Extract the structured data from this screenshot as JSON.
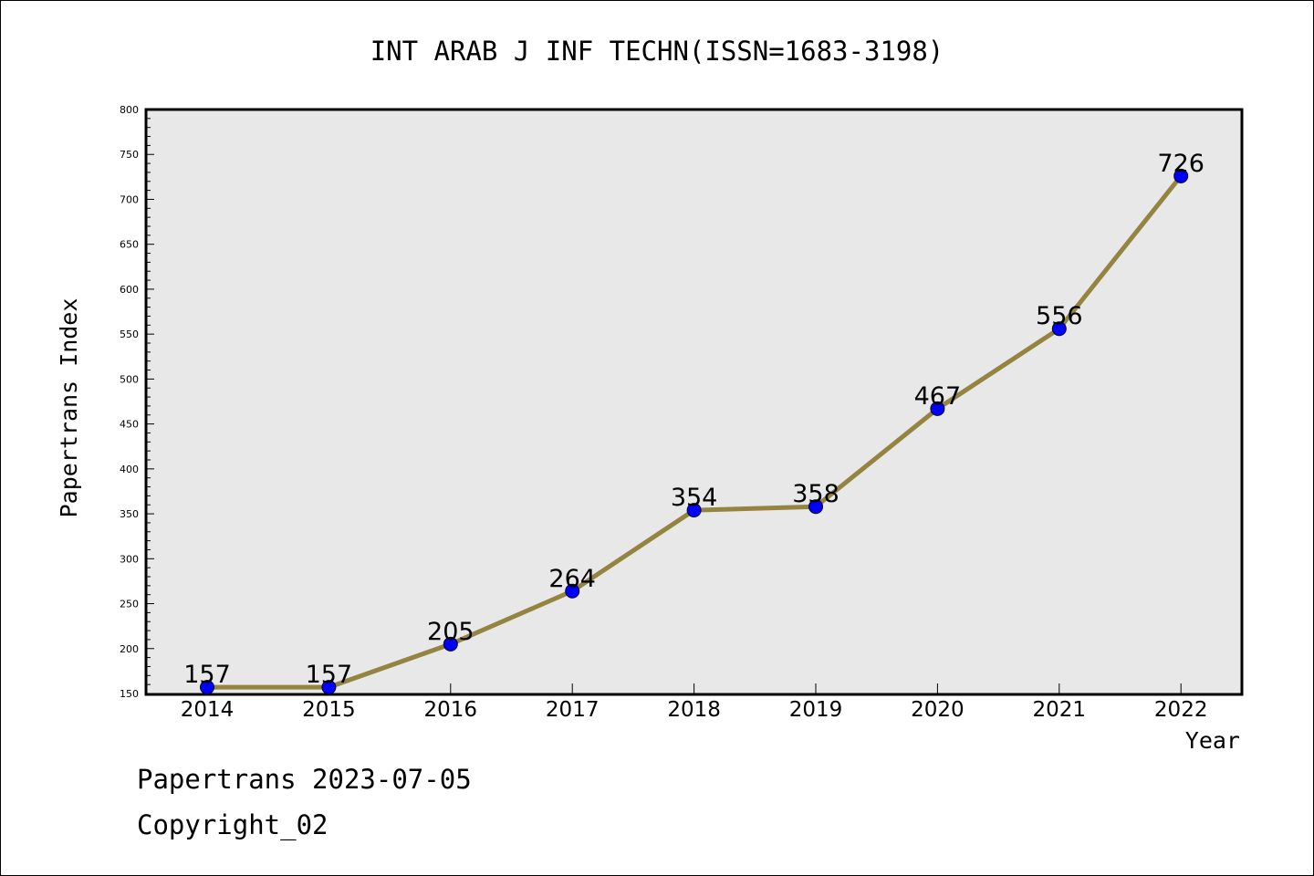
{
  "chart_data": {
    "type": "line",
    "title": "INT ARAB J INF TECHN(ISSN=1683-3198)",
    "xlabel": "Year",
    "ylabel": "Papertrans Index",
    "categories": [
      "2014",
      "2015",
      "2016",
      "2017",
      "2018",
      "2019",
      "2020",
      "2021",
      "2022"
    ],
    "series": [
      {
        "values": [
          157,
          157,
          205,
          264,
          354,
          358,
          467,
          556,
          726
        ]
      }
    ],
    "ylim": [
      150,
      800
    ],
    "yticks": [
      150,
      200,
      250,
      300,
      350,
      400,
      450,
      500,
      550,
      600,
      650,
      700,
      750,
      800
    ],
    "grid": false,
    "line_color": "#948440",
    "marker_color": "#0000ff",
    "plot_background": "#e8e8e8"
  },
  "footer": {
    "line1": "Papertrans 2023-07-05",
    "line2": "Copyright_02"
  }
}
